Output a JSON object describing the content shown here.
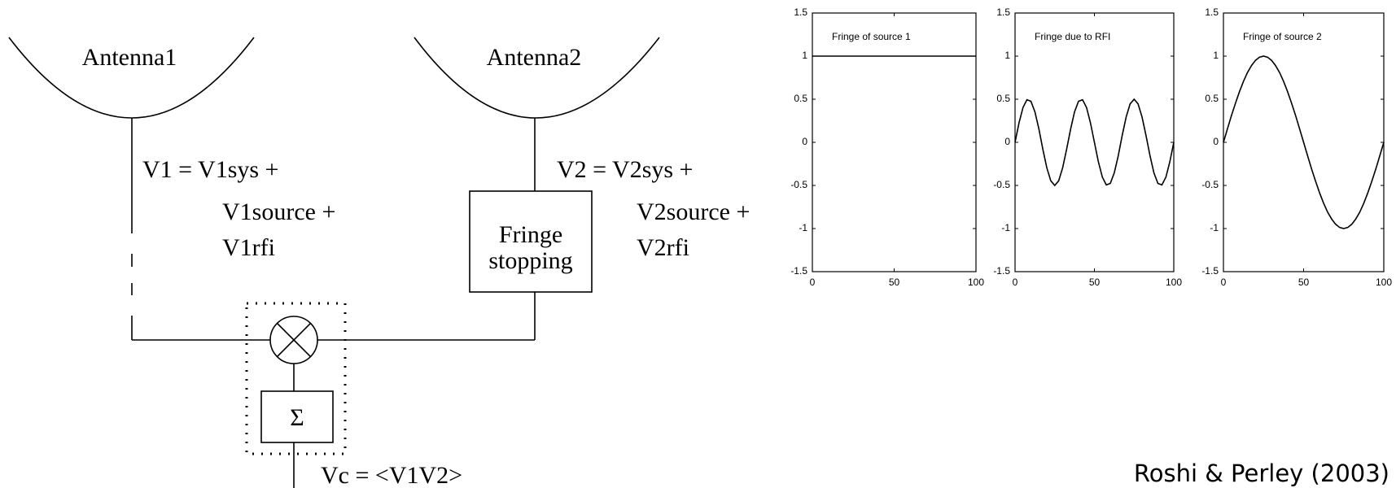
{
  "diagram": {
    "antennas": [
      "Antenna1",
      "Antenna2"
    ],
    "v1": [
      "V1 = V1sys +",
      "V1source +",
      "V1rfi"
    ],
    "v2": [
      "V2 = V2sys +",
      "V2source +",
      "V2rfi"
    ],
    "fringe_box": [
      "Fringe",
      "stopping"
    ],
    "sum": "Σ",
    "output": "Vc = <V1V2>"
  },
  "credit": "Roshi & Perley (2003)",
  "chart_data": [
    {
      "type": "line",
      "title": "Fringe of source 1",
      "x": [
        0,
        100
      ],
      "values": [
        1,
        1
      ],
      "color": "#000000",
      "xlim": [
        0,
        100
      ],
      "ylim": [
        -1.5,
        1.5
      ],
      "xticks": [
        0,
        50,
        100
      ],
      "yticks": [
        -1.5,
        -1,
        -0.5,
        0,
        0.5,
        1,
        1.5
      ]
    },
    {
      "type": "line",
      "title": "Fringe due to RFI",
      "x": [
        0,
        2.5,
        5,
        7.5,
        10,
        12.5,
        15,
        17.5,
        20,
        22.5,
        25,
        27.5,
        30,
        32.5,
        35,
        37.5,
        40,
        42.5,
        45,
        47.5,
        50,
        52.5,
        55,
        57.5,
        60,
        62.5,
        65,
        67.5,
        70,
        72.5,
        75,
        77.5,
        80,
        82.5,
        85,
        87.5,
        90,
        92.5,
        95,
        97.5,
        100
      ],
      "values": [
        0,
        0.227,
        0.405,
        0.494,
        0.476,
        0.354,
        0.155,
        -0.078,
        -0.294,
        -0.446,
        -0.5,
        -0.446,
        -0.294,
        -0.078,
        0.155,
        0.354,
        0.476,
        0.494,
        0.405,
        0.227,
        0,
        -0.227,
        -0.405,
        -0.494,
        -0.476,
        -0.354,
        -0.155,
        0.078,
        0.294,
        0.446,
        0.5,
        0.446,
        0.294,
        0.078,
        -0.155,
        -0.354,
        -0.476,
        -0.494,
        -0.405,
        -0.227,
        0
      ],
      "color": "#000000",
      "xlim": [
        0,
        100
      ],
      "ylim": [
        -1.5,
        1.5
      ],
      "xticks": [
        0,
        50,
        100
      ],
      "yticks": [
        -1.5,
        -1,
        -0.5,
        0,
        0.5,
        1,
        1.5
      ]
    },
    {
      "type": "line",
      "title": "Fringe of source 2",
      "x": [
        0,
        2.5,
        5,
        7.5,
        10,
        12.5,
        15,
        17.5,
        20,
        22.5,
        25,
        27.5,
        30,
        32.5,
        35,
        37.5,
        40,
        42.5,
        45,
        47.5,
        50,
        52.5,
        55,
        57.5,
        60,
        62.5,
        65,
        67.5,
        70,
        72.5,
        75,
        77.5,
        80,
        82.5,
        85,
        87.5,
        90,
        92.5,
        95,
        97.5,
        100
      ],
      "values": [
        0,
        0.156,
        0.309,
        0.454,
        0.588,
        0.707,
        0.809,
        0.891,
        0.951,
        0.988,
        1,
        0.988,
        0.951,
        0.891,
        0.809,
        0.707,
        0.588,
        0.454,
        0.309,
        0.156,
        0,
        -0.156,
        -0.309,
        -0.454,
        -0.588,
        -0.707,
        -0.809,
        -0.891,
        -0.951,
        -0.988,
        -1,
        -0.988,
        -0.951,
        -0.891,
        -0.809,
        -0.707,
        -0.588,
        -0.454,
        -0.309,
        -0.156,
        0
      ],
      "color": "#000000",
      "xlim": [
        0,
        100
      ],
      "ylim": [
        -1.5,
        1.5
      ],
      "xticks": [
        0,
        50,
        100
      ],
      "yticks": [
        -1.5,
        -1,
        -0.5,
        0,
        0.5,
        1,
        1.5
      ]
    }
  ]
}
